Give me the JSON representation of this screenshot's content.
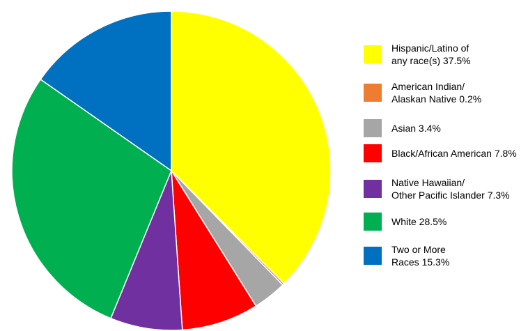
{
  "chart_data": {
    "type": "pie",
    "title": "",
    "start_angle_deg": 0,
    "direction": "clockwise",
    "slices": [
      {
        "label": "Hispanic/Latino of\nany race(s) 37.5%",
        "value": 37.5,
        "color": "#FFFF00"
      },
      {
        "label": "American Indian/\nAlaskan Native 0.2%",
        "value": 0.2,
        "color": "#ED7D31"
      },
      {
        "label": "Asian 3.4%",
        "value": 3.4,
        "color": "#A6A6A6"
      },
      {
        "label": "Black/African American 7.8%",
        "value": 7.8,
        "color": "#FF0000"
      },
      {
        "label": "Native Hawaiian/\nOther Pacific Islander 7.3%",
        "value": 7.3,
        "color": "#7030A0"
      },
      {
        "label": "White 28.5%",
        "value": 28.5,
        "color": "#00B050"
      },
      {
        "label": "Two or More\nRaces 15.3%",
        "value": 15.3,
        "color": "#0070C0"
      }
    ],
    "legend_position": "right"
  }
}
